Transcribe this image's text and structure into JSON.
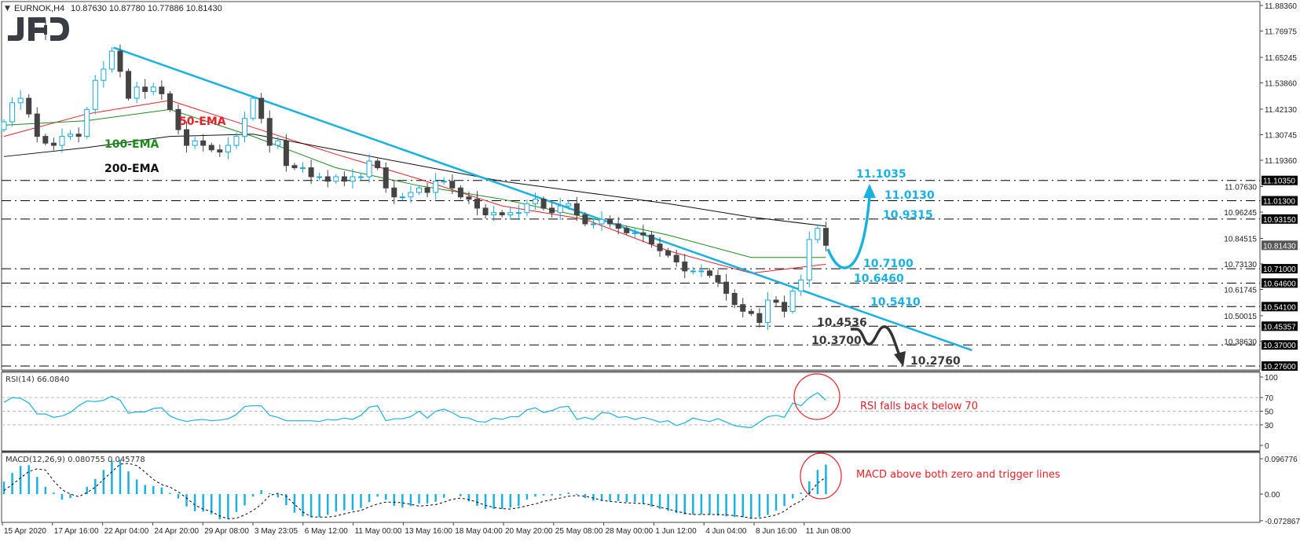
{
  "header": {
    "menu_icon": "triangle-down-icon",
    "symbol": "EURNOK,H4",
    "ohlc": "10.87630 10.87780 10.77886 10.81430"
  },
  "logo": "JFD",
  "colors": {
    "bull": "#1aa7d6",
    "bear": "#444444",
    "ema50": "#e8202a",
    "ema100": "#1e8a1e",
    "ema200": "#111111",
    "trendline": "#1ab0e0",
    "rsi": "#1ab0e0",
    "hist": "#1ab0e0",
    "annotation": "#e8202a",
    "label_blue": "#1ab0e0",
    "label_dark": "#3a3a3a"
  },
  "chart_data": [
    {
      "type": "candlestick",
      "symbol": "EURNOK",
      "timeframe": "H4",
      "y_ticks": [
        "11.88360",
        "11.76975",
        "11.65245",
        "11.53860",
        "11.42130",
        "11.30745",
        "11.19360",
        "11.07630",
        "10.96245",
        "10.84515",
        "10.73130",
        "10.61745",
        "10.50015",
        "10.38630"
      ],
      "ylim": [
        10.276,
        11.8836
      ],
      "x_tick_labels": [
        "15 Apr 2020",
        "17 Apr 16:00",
        "22 Apr 04:00",
        "24 Apr 20:00",
        "29 Apr 08:00",
        "3 May 23:05",
        "6 May 12:00",
        "11 May 00:00",
        "13 May 16:00",
        "18 May 04:00",
        "20 May 20:00",
        "25 May 08:00",
        "28 May 00:00",
        "1 Jun 12:00",
        "4 Jun 04:00",
        "8 Jun 16:00",
        "11 Jun 08:00"
      ],
      "close": [
        11.365,
        11.45,
        11.47,
        11.4,
        11.3,
        11.27,
        11.26,
        11.3,
        11.31,
        11.3,
        11.42,
        11.55,
        11.6,
        11.68,
        11.59,
        11.47,
        11.52,
        11.5,
        11.52,
        11.49,
        11.42,
        11.33,
        11.26,
        11.28,
        11.26,
        11.24,
        11.23,
        11.26,
        11.3,
        11.38,
        11.47,
        11.38,
        11.26,
        11.28,
        11.17,
        11.16,
        11.16,
        11.12,
        11.12,
        11.1,
        11.12,
        11.1,
        11.12,
        11.12,
        11.19,
        11.16,
        11.07,
        11.03,
        11.03,
        11.05,
        11.07,
        11.05,
        11.1,
        11.1,
        11.07,
        11.03,
        11.02,
        10.98,
        10.95,
        10.96,
        10.95,
        10.96,
        10.96,
        11.0,
        11.02,
        10.98,
        10.96,
        10.99,
        11.0,
        10.95,
        10.91,
        10.91,
        10.93,
        10.91,
        10.89,
        10.87,
        10.87,
        10.86,
        10.82,
        10.79,
        10.77,
        10.74,
        10.7,
        10.7,
        10.7,
        10.68,
        10.65,
        10.6,
        10.55,
        10.52,
        10.51,
        10.47,
        10.57,
        10.56,
        10.52,
        10.61,
        10.66,
        10.84,
        10.89,
        10.8143
      ],
      "ema_sample_step": 10,
      "series": [
        {
          "name": "50-EMA",
          "values": [
            11.3,
            11.4,
            11.46,
            11.34,
            11.22,
            11.11,
            10.99,
            10.93,
            10.79,
            10.69,
            10.73
          ]
        },
        {
          "name": "100-EMA",
          "values": [
            11.35,
            11.37,
            11.42,
            11.3,
            11.16,
            11.08,
            11.02,
            10.94,
            10.86,
            10.76,
            10.76
          ]
        },
        {
          "name": "200-EMA",
          "values": [
            11.21,
            11.25,
            11.3,
            11.31,
            11.24,
            11.17,
            11.1,
            11.05,
            11.0,
            10.94,
            10.9
          ]
        }
      ],
      "trendline": {
        "start": {
          "bar": 13.2,
          "price": 11.696
        },
        "end": {
          "bar": 116.6,
          "price": 10.346
        }
      },
      "levels": [
        {
          "price": 11.1035,
          "axis_label": "11.10350",
          "label": "11.1035",
          "tone": "blue"
        },
        {
          "price": 11.013,
          "axis_label": "11.01300",
          "label": "11.0130",
          "tone": "blue"
        },
        {
          "price": 10.9315,
          "axis_label": "10.93150",
          "label": "10.9315",
          "tone": "blue"
        },
        {
          "price": 10.71,
          "axis_label": "10.71000",
          "label": "10.7100",
          "tone": "blue"
        },
        {
          "price": 10.646,
          "axis_label": "10.64600",
          "label": "10.6460",
          "tone": "blue"
        },
        {
          "price": 10.541,
          "axis_label": "10.54100",
          "label": "10.5410",
          "tone": "blue"
        },
        {
          "price": 10.45357,
          "axis_label": "10.45357",
          "label": "10.4536",
          "tone": "dark"
        },
        {
          "price": 10.37,
          "axis_label": "10.37000",
          "label": "10.3700",
          "tone": "dark"
        },
        {
          "price": 10.276,
          "axis_label": "10.27600",
          "label": "10.2760",
          "tone": "dark"
        }
      ],
      "current_price": {
        "price": 10.8143,
        "axis_label": "10.81430"
      }
    },
    {
      "type": "line",
      "title": "RSI(14) 66.0840",
      "ylim": [
        0,
        100
      ],
      "y_ticks": [
        "100",
        "70",
        "50",
        "30",
        "0"
      ],
      "levels": [
        70,
        50,
        30
      ],
      "values": [
        63,
        70,
        69,
        62,
        46,
        46,
        41,
        43,
        48,
        58,
        65,
        64,
        66,
        72,
        66,
        47,
        49,
        49,
        54,
        55,
        43,
        38,
        35,
        37,
        38,
        36,
        37,
        39,
        45,
        57,
        58,
        58,
        44,
        41,
        36,
        36,
        36,
        36,
        35,
        38,
        37,
        40,
        38,
        44,
        56,
        58,
        36,
        39,
        39,
        42,
        50,
        40,
        50,
        53,
        48,
        41,
        40,
        35,
        34,
        40,
        38,
        42,
        42,
        52,
        55,
        48,
        51,
        56,
        57,
        38,
        41,
        38,
        48,
        47,
        41,
        42,
        38,
        41,
        38,
        34,
        36,
        29,
        33,
        40,
        37,
        35,
        39,
        34,
        29,
        27,
        26,
        34,
        42,
        44,
        41,
        62,
        58,
        70,
        77,
        66.08
      ],
      "annotation": "RSI falls back below 70"
    },
    {
      "type": "bar+line",
      "title": "MACD(12,26,9) 0.080755 0.045778",
      "y_ticks": [
        "0.096776",
        "0.00",
        "-0.072867"
      ],
      "ylim": [
        -0.072867,
        0.096776
      ],
      "histogram": [
        0.034,
        0.058,
        0.077,
        0.079,
        0.047,
        0.02,
        0.004,
        -0.015,
        -0.011,
        0.0,
        0.02,
        0.041,
        0.066,
        0.091,
        0.093,
        0.062,
        0.04,
        0.025,
        0.022,
        0.018,
        0.003,
        -0.012,
        -0.034,
        -0.047,
        -0.048,
        -0.055,
        -0.069,
        -0.067,
        -0.049,
        -0.031,
        -0.007,
        0.011,
        0.002,
        -0.009,
        -0.03,
        -0.051,
        -0.061,
        -0.063,
        -0.063,
        -0.057,
        -0.048,
        -0.044,
        -0.044,
        -0.038,
        -0.022,
        -0.007,
        -0.015,
        -0.032,
        -0.037,
        -0.033,
        -0.026,
        -0.026,
        -0.021,
        -0.01,
        0.0,
        -0.006,
        -0.02,
        -0.032,
        -0.041,
        -0.041,
        -0.041,
        -0.037,
        -0.033,
        -0.015,
        -0.007,
        -0.004,
        -0.004,
        -0.004,
        0.004,
        -0.002,
        -0.011,
        -0.018,
        -0.019,
        -0.019,
        -0.019,
        -0.022,
        -0.022,
        -0.026,
        -0.035,
        -0.041,
        -0.046,
        -0.052,
        -0.056,
        -0.056,
        -0.056,
        -0.056,
        -0.059,
        -0.061,
        -0.063,
        -0.063,
        -0.067,
        -0.063,
        -0.057,
        -0.045,
        -0.033,
        -0.012,
        0.004,
        0.035,
        0.066,
        0.0808
      ],
      "signal": [
        0.01,
        0.026,
        0.044,
        0.062,
        0.069,
        0.066,
        0.036,
        0.012,
        0.0,
        -0.007,
        0.004,
        0.019,
        0.04,
        0.061,
        0.082,
        0.084,
        0.078,
        0.06,
        0.04,
        0.026,
        0.019,
        0.006,
        -0.011,
        -0.03,
        -0.041,
        -0.048,
        -0.06,
        -0.068,
        -0.066,
        -0.057,
        -0.045,
        -0.028,
        -0.004,
        0.002,
        -0.006,
        -0.028,
        -0.049,
        -0.062,
        -0.063,
        -0.063,
        -0.06,
        -0.054,
        -0.049,
        -0.045,
        -0.035,
        -0.027,
        -0.022,
        -0.022,
        -0.024,
        -0.028,
        -0.033,
        -0.031,
        -0.029,
        -0.022,
        -0.014,
        -0.011,
        -0.015,
        -0.022,
        -0.031,
        -0.036,
        -0.04,
        -0.041,
        -0.037,
        -0.032,
        -0.027,
        -0.02,
        -0.015,
        -0.011,
        -0.006,
        -0.004,
        -0.006,
        -0.011,
        -0.017,
        -0.02,
        -0.022,
        -0.024,
        -0.025,
        -0.026,
        -0.03,
        -0.036,
        -0.041,
        -0.047,
        -0.052,
        -0.056,
        -0.056,
        -0.056,
        -0.056,
        -0.057,
        -0.059,
        -0.062,
        -0.066,
        -0.066,
        -0.062,
        -0.057,
        -0.047,
        -0.03,
        -0.019,
        0.002,
        0.03,
        0.0458
      ],
      "annotation": "MACD above both zero and trigger lines"
    }
  ]
}
